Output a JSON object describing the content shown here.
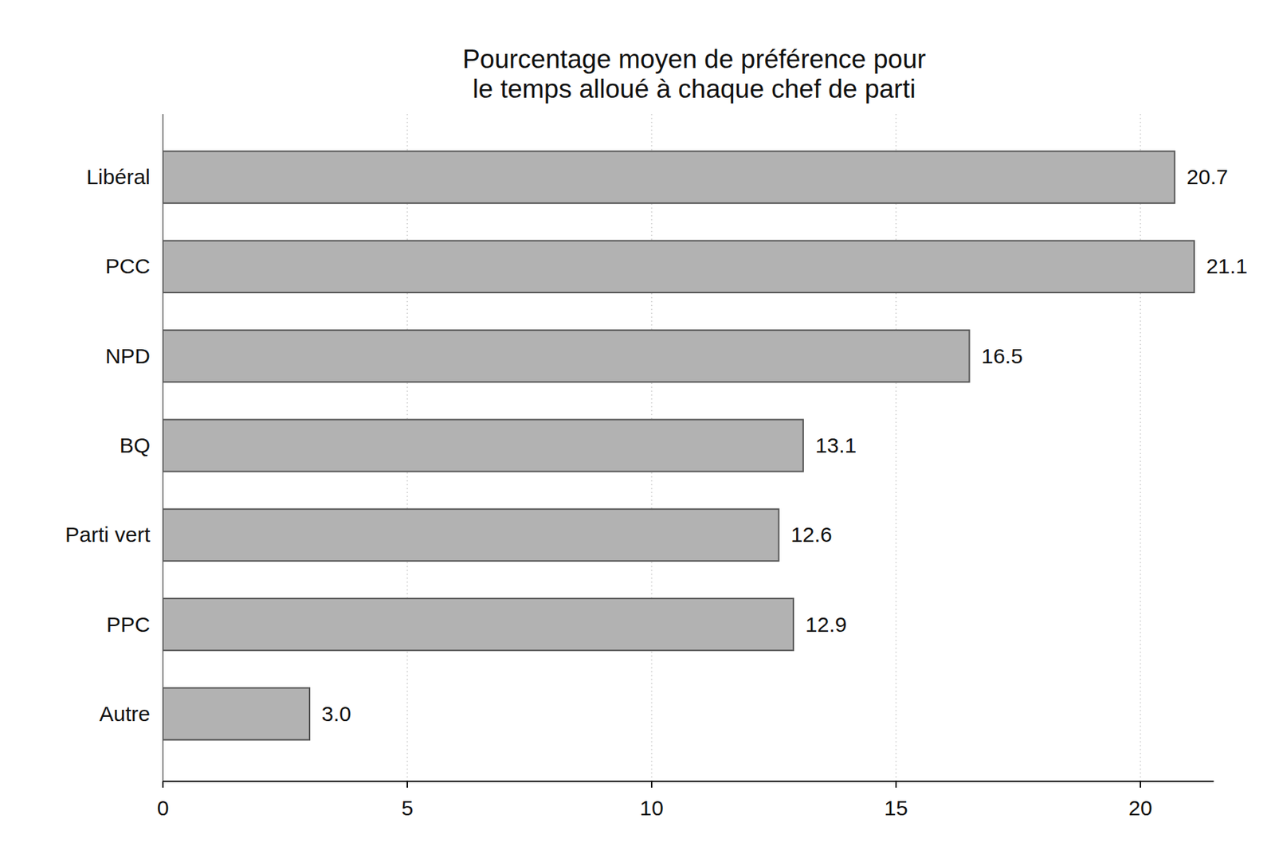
{
  "chart_data": {
    "type": "bar",
    "orientation": "horizontal",
    "title": [
      "Pourcentage moyen de préférence pour",
      "le temps alloué à chaque chef de parti"
    ],
    "categories": [
      "Libéral",
      "PCC",
      "NPD",
      "BQ",
      "Parti vert",
      "PPC",
      "Autre"
    ],
    "values": [
      20.7,
      21.1,
      16.5,
      13.1,
      12.6,
      12.9,
      3.0
    ],
    "value_labels": [
      "20.7",
      "21.1",
      "16.5",
      "13.1",
      "12.6",
      "12.9",
      "3.0"
    ],
    "data_labels": true,
    "color": "#b2b2b2",
    "xlim": [
      0,
      21.5
    ],
    "xticks": [
      0,
      5,
      10,
      15,
      20
    ],
    "grid": true
  }
}
